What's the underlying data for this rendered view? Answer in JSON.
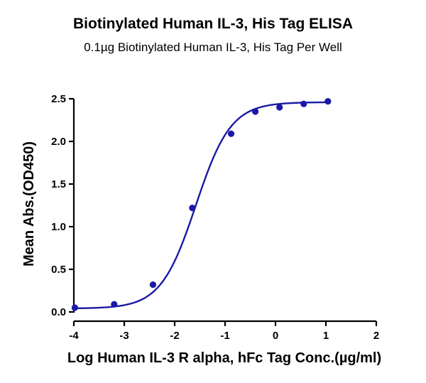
{
  "chart_data": {
    "type": "scatter",
    "title": "Biotinylated Human IL-3, His Tag ELISA",
    "subtitle": "0.1µg Biotinylated Human IL-3, His Tag Per Well",
    "xlabel": "Log Human IL-3 R alpha, hFc Tag Conc.(µg/ml)",
    "ylabel": "Mean Abs.(OD450)",
    "xlim": [
      -4,
      2
    ],
    "ylim": [
      0,
      2.5
    ],
    "xticks": [
      "-4",
      "-3",
      "-2",
      "-1",
      "0",
      "1",
      "2"
    ],
    "yticks": [
      "0.0",
      "0.5",
      "1.0",
      "1.5",
      "2.0",
      "2.5"
    ],
    "grid": false,
    "series_color": "#1a1aa6",
    "points": {
      "x": [
        -3.98,
        -3.2,
        -2.43,
        -1.65,
        -0.88,
        -0.4,
        0.08,
        0.56,
        1.04
      ],
      "y": [
        0.05,
        0.09,
        0.32,
        1.22,
        2.09,
        2.35,
        2.4,
        2.44,
        2.47
      ]
    },
    "fit": {
      "bottom": 0.04,
      "top": 2.46,
      "logEC50": -1.58,
      "hill": 1.25
    }
  }
}
